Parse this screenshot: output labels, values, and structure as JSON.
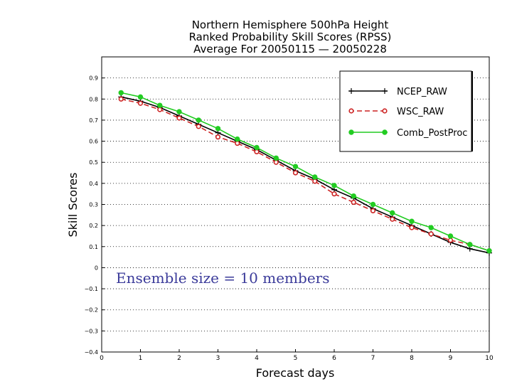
{
  "chart_data": {
    "type": "line",
    "title_lines": [
      "Northern Hemisphere 500hPa Height",
      "Ranked Probability Skill Scores (RPSS)",
      "Average For 20050115 — 20050228"
    ],
    "xlabel": "Forecast days",
    "ylabel": "Skill Scores",
    "xlim": [
      0,
      10
    ],
    "ylim": [
      -0.4,
      1.0
    ],
    "x_ticks": [
      0,
      1,
      2,
      3,
      4,
      5,
      6,
      7,
      8,
      9,
      10
    ],
    "x_tick_labels": [
      "0",
      "1",
      "2",
      "3",
      "4",
      "5",
      "6",
      "7",
      "8",
      "9",
      "10"
    ],
    "y_ticks": [
      -0.4,
      -0.3,
      -0.2,
      -0.1,
      0,
      0.1,
      0.2,
      0.3,
      0.4,
      0.5,
      0.6,
      0.7,
      0.8,
      0.9
    ],
    "y_tick_labels": [
      "−0.4",
      "−0.3",
      "−0.2",
      "−0.1",
      "0",
      "0.1",
      "0.2",
      "0.3",
      "0.4",
      "0.5",
      "0.6",
      "0.7",
      "0.8",
      "0.9"
    ],
    "grid": "horizontal-dotted",
    "legend_position": "top-right",
    "annotation": "Ensemble size = 10 members",
    "series": [
      {
        "name": "NCEP_RAW",
        "color": "#000000",
        "marker": "plus",
        "dash": "solid",
        "x": [
          0.5,
          1.0,
          1.5,
          2.0,
          2.5,
          3.0,
          3.5,
          4.0,
          4.5,
          5.0,
          5.5,
          6.0,
          6.5,
          7.0,
          7.5,
          8.0,
          8.5,
          9.0,
          9.5,
          10.0
        ],
        "values": [
          0.81,
          0.79,
          0.76,
          0.72,
          0.68,
          0.64,
          0.6,
          0.56,
          0.51,
          0.46,
          0.42,
          0.37,
          0.33,
          0.28,
          0.24,
          0.2,
          0.16,
          0.12,
          0.09,
          0.07
        ]
      },
      {
        "name": "WSC_RAW",
        "color": "#cc2222",
        "marker": "open-circle",
        "dash": "dashed",
        "x": [
          0.5,
          1.0,
          1.5,
          2.0,
          2.5,
          3.0,
          3.5,
          4.0,
          4.5,
          5.0,
          5.5,
          6.0,
          6.5,
          7.0,
          7.5,
          8.0,
          8.5,
          9.0,
          9.5,
          10.0
        ],
        "values": [
          0.8,
          0.78,
          0.75,
          0.71,
          0.67,
          0.62,
          0.59,
          0.55,
          0.5,
          0.45,
          0.41,
          0.35,
          0.31,
          0.27,
          0.23,
          0.19,
          0.16,
          0.13,
          0.11,
          0.08
        ]
      },
      {
        "name": "Comb_PostProc",
        "color": "#22cc22",
        "marker": "filled-circle",
        "dash": "solid",
        "x": [
          0.5,
          1.0,
          1.5,
          2.0,
          2.5,
          3.0,
          3.5,
          4.0,
          4.5,
          5.0,
          5.5,
          6.0,
          6.5,
          7.0,
          7.5,
          8.0,
          8.5,
          9.0,
          9.5,
          10.0
        ],
        "values": [
          0.83,
          0.81,
          0.77,
          0.74,
          0.7,
          0.66,
          0.61,
          0.57,
          0.52,
          0.48,
          0.43,
          0.39,
          0.34,
          0.3,
          0.26,
          0.22,
          0.19,
          0.15,
          0.11,
          0.08
        ]
      }
    ]
  }
}
